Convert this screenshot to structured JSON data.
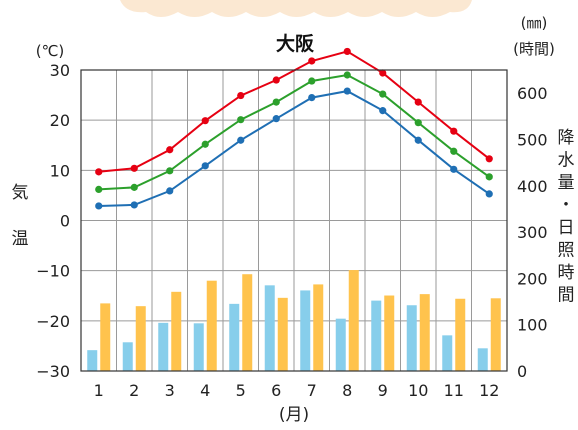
{
  "chart_data": {
    "type": "bar",
    "title": "大阪",
    "categories": [
      "1",
      "2",
      "3",
      "4",
      "5",
      "6",
      "7",
      "8",
      "9",
      "10",
      "11",
      "12"
    ],
    "x_unit": "(月)",
    "left_axis": {
      "label": [
        "気",
        "温"
      ],
      "unit": "(℃)",
      "range": [
        -30,
        30
      ],
      "ticks": [
        "−30",
        "−20",
        "−10",
        "0",
        "10",
        "20",
        "30"
      ]
    },
    "right_axis": {
      "label": [
        "降",
        "水",
        "量",
        "・",
        "日",
        "照",
        "時",
        "間"
      ],
      "unit_line1": "(㎜)",
      "unit_line2": "(時間)",
      "range": [
        0,
        650
      ],
      "ticks": [
        "0",
        "100",
        "200",
        "300",
        "400",
        "500",
        "600"
      ]
    },
    "series": [
      {
        "kind": "line",
        "axis": "left",
        "color": "#e60012",
        "values": [
          9.7,
          10.4,
          14.1,
          19.9,
          24.9,
          28.0,
          31.8,
          33.7,
          29.4,
          23.6,
          17.8,
          12.3
        ]
      },
      {
        "kind": "line",
        "axis": "left",
        "color": "#2ca02c",
        "values": [
          6.2,
          6.6,
          9.9,
          15.2,
          20.1,
          23.6,
          27.8,
          29.0,
          25.2,
          19.5,
          13.8,
          8.7
        ]
      },
      {
        "kind": "line",
        "axis": "left",
        "color": "#1f6fb4",
        "values": [
          2.9,
          3.1,
          5.9,
          10.9,
          16.0,
          20.3,
          24.5,
          25.8,
          21.9,
          16.0,
          10.2,
          5.3
        ]
      },
      {
        "kind": "bar",
        "axis": "right",
        "color": "#87ceeb",
        "values": [
          45,
          62,
          104,
          103,
          145,
          185,
          174,
          113,
          152,
          142,
          77,
          49
        ]
      },
      {
        "kind": "bar",
        "axis": "right",
        "color": "#ffc34d",
        "values": [
          146,
          140,
          171,
          195,
          209,
          158,
          187,
          218,
          163,
          166,
          156,
          157
        ]
      }
    ]
  }
}
